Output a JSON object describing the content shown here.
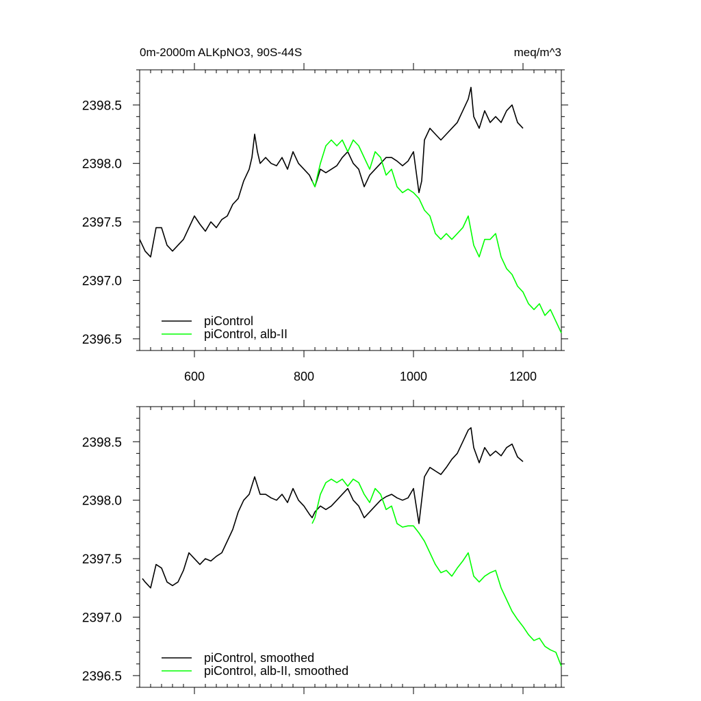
{
  "header": {
    "title_left": "0m-2000m ALKpNO3, 90S-44S",
    "title_right": "meq/m^3"
  },
  "colors": {
    "piControl": "#000000",
    "alb_II": "#00ff00"
  },
  "chart_data": [
    {
      "type": "line",
      "title": "0m-2000m ALKpNO3, 90S-44S",
      "units": "meq/m^3",
      "xlabel": "",
      "ylabel": "",
      "xlim": [
        500,
        1270
      ],
      "ylim": [
        2396.4,
        2398.8
      ],
      "xticks": [
        600,
        800,
        1000,
        1200
      ],
      "xtick_labels": [
        "600",
        "800",
        "1000",
        "1200"
      ],
      "yticks": [
        2396.5,
        2397.0,
        2397.5,
        2398.0,
        2398.5
      ],
      "ytick_labels": [
        "2396.5",
        "2397.0",
        "2397.5",
        "2398.0",
        "2398.5"
      ],
      "grid": false,
      "legend_position": "bottom-left",
      "series": [
        {
          "name": "piControl",
          "color": "#000000",
          "x": [
            500,
            510,
            520,
            530,
            540,
            550,
            560,
            570,
            580,
            590,
            600,
            610,
            620,
            630,
            640,
            650,
            660,
            670,
            680,
            690,
            700,
            705,
            710,
            715,
            720,
            730,
            740,
            750,
            760,
            770,
            780,
            790,
            800,
            810,
            815,
            820,
            830,
            840,
            850,
            860,
            870,
            880,
            890,
            900,
            910,
            915,
            920,
            930,
            940,
            950,
            960,
            970,
            980,
            990,
            1000,
            1010,
            1015,
            1020,
            1030,
            1040,
            1050,
            1060,
            1070,
            1080,
            1090,
            1100,
            1105,
            1110,
            1120,
            1130,
            1140,
            1150,
            1160,
            1170,
            1180,
            1190,
            1200
          ],
          "y": [
            2397.35,
            2397.25,
            2397.2,
            2397.45,
            2397.45,
            2397.3,
            2397.25,
            2397.3,
            2397.35,
            2397.45,
            2397.55,
            2397.48,
            2397.42,
            2397.5,
            2397.45,
            2397.52,
            2397.55,
            2397.65,
            2397.7,
            2397.85,
            2397.95,
            2398.05,
            2398.25,
            2398.1,
            2398.0,
            2398.05,
            2398.0,
            2397.98,
            2398.05,
            2397.95,
            2398.1,
            2398.0,
            2397.95,
            2397.9,
            2397.85,
            2397.8,
            2397.95,
            2397.92,
            2397.95,
            2397.98,
            2398.05,
            2398.1,
            2398.0,
            2397.95,
            2397.8,
            2397.85,
            2397.9,
            2397.95,
            2398.0,
            2398.05,
            2398.05,
            2398.02,
            2397.98,
            2398.02,
            2398.1,
            2397.75,
            2397.85,
            2398.2,
            2398.3,
            2398.25,
            2398.2,
            2398.25,
            2398.3,
            2398.35,
            2398.45,
            2398.55,
            2398.65,
            2398.4,
            2398.3,
            2398.45,
            2398.35,
            2398.4,
            2398.35,
            2398.45,
            2398.5,
            2398.35,
            2398.3
          ]
        },
        {
          "name": "piControl, alb-II",
          "color": "#00ff00",
          "x": [
            815,
            820,
            830,
            840,
            850,
            860,
            870,
            880,
            890,
            900,
            910,
            920,
            930,
            940,
            950,
            960,
            970,
            980,
            990,
            1000,
            1010,
            1020,
            1030,
            1040,
            1050,
            1060,
            1070,
            1080,
            1090,
            1100,
            1110,
            1120,
            1130,
            1140,
            1150,
            1160,
            1170,
            1180,
            1190,
            1200,
            1210,
            1220,
            1230,
            1240,
            1250,
            1260,
            1270
          ],
          "y": [
            2397.85,
            2397.8,
            2398.0,
            2398.15,
            2398.2,
            2398.15,
            2398.2,
            2398.1,
            2398.2,
            2398.15,
            2398.05,
            2397.95,
            2398.1,
            2398.05,
            2397.9,
            2397.95,
            2397.8,
            2397.75,
            2397.78,
            2397.75,
            2397.7,
            2397.6,
            2397.55,
            2397.4,
            2397.35,
            2397.4,
            2397.35,
            2397.4,
            2397.45,
            2397.55,
            2397.3,
            2397.2,
            2397.35,
            2397.35,
            2397.4,
            2397.2,
            2397.1,
            2397.05,
            2396.95,
            2396.9,
            2396.8,
            2396.75,
            2396.8,
            2396.7,
            2396.75,
            2396.65,
            2396.55
          ]
        }
      ]
    },
    {
      "type": "line",
      "title": "",
      "xlabel": "",
      "ylabel": "",
      "xlim": [
        500,
        1270
      ],
      "ylim": [
        2396.4,
        2398.8
      ],
      "xticks": [
        600,
        800,
        1000,
        1200
      ],
      "xtick_labels": [],
      "yticks": [
        2396.5,
        2397.0,
        2397.5,
        2398.0,
        2398.5
      ],
      "ytick_labels": [
        "2396.5",
        "2397.0",
        "2397.5",
        "2398.0",
        "2398.5"
      ],
      "grid": false,
      "legend_position": "bottom-left",
      "series": [
        {
          "name": "piControl, smoothed",
          "color": "#000000",
          "x": [
            505,
            510,
            520,
            530,
            540,
            550,
            560,
            570,
            580,
            590,
            600,
            610,
            620,
            630,
            640,
            650,
            660,
            670,
            680,
            690,
            700,
            710,
            720,
            730,
            740,
            750,
            760,
            770,
            780,
            790,
            800,
            810,
            815,
            820,
            830,
            840,
            850,
            860,
            870,
            880,
            890,
            900,
            910,
            920,
            930,
            940,
            950,
            960,
            970,
            980,
            990,
            1000,
            1010,
            1020,
            1030,
            1040,
            1050,
            1060,
            1070,
            1080,
            1090,
            1100,
            1105,
            1110,
            1120,
            1130,
            1140,
            1150,
            1160,
            1170,
            1180,
            1190,
            1200
          ],
          "y": [
            2397.33,
            2397.3,
            2397.25,
            2397.45,
            2397.42,
            2397.3,
            2397.27,
            2397.3,
            2397.4,
            2397.55,
            2397.5,
            2397.45,
            2397.5,
            2397.48,
            2397.52,
            2397.55,
            2397.65,
            2397.75,
            2397.9,
            2398.0,
            2398.05,
            2398.2,
            2398.05,
            2398.05,
            2398.02,
            2398.0,
            2398.05,
            2397.98,
            2398.1,
            2398.0,
            2397.95,
            2397.88,
            2397.85,
            2397.9,
            2397.95,
            2397.92,
            2397.95,
            2398.0,
            2398.05,
            2398.1,
            2398.0,
            2397.95,
            2397.85,
            2397.9,
            2397.95,
            2398.0,
            2398.03,
            2398.05,
            2398.02,
            2398.0,
            2398.02,
            2398.1,
            2397.8,
            2398.2,
            2398.28,
            2398.25,
            2398.22,
            2398.28,
            2398.35,
            2398.4,
            2398.5,
            2398.6,
            2398.62,
            2398.45,
            2398.32,
            2398.45,
            2398.38,
            2398.42,
            2398.38,
            2398.45,
            2398.48,
            2398.37,
            2398.33
          ]
        },
        {
          "name": "piControl, alb-II, smoothed",
          "color": "#00ff00",
          "x": [
            815,
            820,
            830,
            840,
            850,
            860,
            870,
            880,
            890,
            900,
            910,
            920,
            930,
            940,
            950,
            960,
            970,
            980,
            990,
            1000,
            1010,
            1020,
            1030,
            1040,
            1050,
            1060,
            1070,
            1080,
            1090,
            1100,
            1110,
            1120,
            1130,
            1140,
            1150,
            1160,
            1170,
            1180,
            1190,
            1200,
            1210,
            1220,
            1230,
            1240,
            1250,
            1260,
            1270
          ],
          "y": [
            2397.8,
            2397.85,
            2398.05,
            2398.15,
            2398.18,
            2398.15,
            2398.18,
            2398.12,
            2398.18,
            2398.15,
            2398.05,
            2397.98,
            2398.1,
            2398.05,
            2397.92,
            2397.95,
            2397.8,
            2397.77,
            2397.78,
            2397.78,
            2397.72,
            2397.65,
            2397.55,
            2397.45,
            2397.38,
            2397.4,
            2397.35,
            2397.42,
            2397.48,
            2397.55,
            2397.35,
            2397.3,
            2397.35,
            2397.38,
            2397.4,
            2397.25,
            2397.15,
            2397.05,
            2396.98,
            2396.92,
            2396.85,
            2396.8,
            2396.82,
            2396.75,
            2396.72,
            2396.7,
            2396.58
          ]
        }
      ]
    }
  ]
}
